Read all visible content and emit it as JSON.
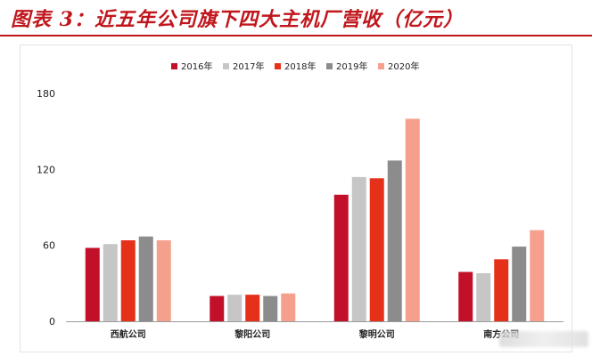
{
  "header": {
    "title": "图表 3：近五年公司旗下四大主机厂营收（亿元）",
    "accent_color": "#c0161c"
  },
  "chart_data": {
    "type": "bar",
    "categories": [
      "西航公司",
      "黎阳公司",
      "黎明公司",
      "南方公司"
    ],
    "series": [
      {
        "name": "2016年",
        "color": "#c3102a",
        "values": [
          58,
          20,
          100,
          39
        ]
      },
      {
        "name": "2017年",
        "color": "#c6c6c6",
        "values": [
          61,
          21,
          114,
          38
        ]
      },
      {
        "name": "2018年",
        "color": "#e5311a",
        "values": [
          64,
          21,
          113,
          49
        ]
      },
      {
        "name": "2019年",
        "color": "#8c8c8c",
        "values": [
          67,
          20,
          127,
          59
        ]
      },
      {
        "name": "2020年",
        "color": "#f5a08d",
        "values": [
          64,
          22,
          160,
          72
        ]
      }
    ],
    "yticks": [
      0,
      60,
      120,
      180
    ],
    "ylim": [
      0,
      180
    ],
    "xlabel": "",
    "ylabel": "",
    "grid": false,
    "legend_position": "top-center"
  }
}
